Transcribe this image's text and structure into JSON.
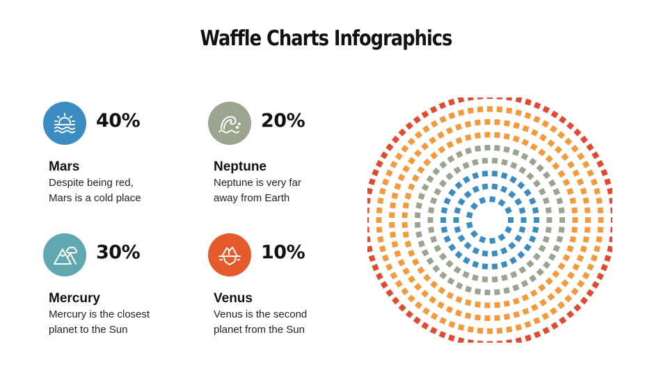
{
  "title": "Waffle Charts Infographics",
  "items": [
    {
      "name": "Mars",
      "percent": "40%",
      "desc": [
        "Despite being red,",
        "Mars is a cold place"
      ],
      "color": "#3b8cc0",
      "icon": "sunset-icon"
    },
    {
      "name": "Neptune",
      "percent": "20%",
      "desc": [
        "Neptune is very far",
        "away from Earth"
      ],
      "color": "#9aa48e",
      "icon": "wave-icon"
    },
    {
      "name": "Mercury",
      "percent": "30%",
      "desc": [
        "Mercury is the closest",
        "planet to the Sun"
      ],
      "color": "#5fa8b2",
      "icon": "mountain-icon"
    },
    {
      "name": "Venus",
      "percent": "10%",
      "desc": [
        "Venus is the second",
        "planet from the Sun"
      ],
      "color": "#e55a2b",
      "icon": "iceberg-icon"
    }
  ],
  "chart_data": {
    "type": "radial-dot",
    "rings": [
      {
        "ring": 1,
        "color": "#3b8cc0"
      },
      {
        "ring": 2,
        "color": "#3b8cc0"
      },
      {
        "ring": 3,
        "color": "#3b8cc0"
      },
      {
        "ring": 4,
        "color": "#9aa48e"
      },
      {
        "ring": 5,
        "color": "#9aa48e"
      },
      {
        "ring": 6,
        "color": "#f29a3c"
      },
      {
        "ring": 7,
        "color": "#f29a3c"
      },
      {
        "ring": 8,
        "color": "#f29a3c"
      },
      {
        "ring": 9,
        "color": "#e04a2f"
      }
    ]
  }
}
